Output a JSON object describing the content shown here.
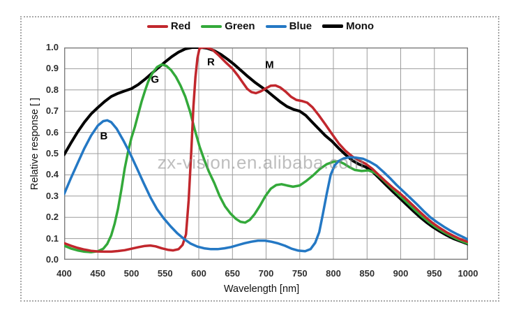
{
  "watermark": {
    "text": "zx-vision.en.alibaba.com"
  },
  "chart_data": {
    "type": "line",
    "title": "",
    "xlabel": "Wavelength [nm]",
    "ylabel": "Relative response [ ]",
    "xlim": [
      400,
      1000
    ],
    "ylim": [
      0,
      1
    ],
    "grid": true,
    "x_ticks": [
      400,
      450,
      500,
      550,
      600,
      650,
      700,
      750,
      800,
      850,
      900,
      950,
      1000
    ],
    "y_ticks": [
      1.0,
      0.9,
      0.8,
      0.7,
      0.6,
      0.5,
      0.4,
      0.3,
      0.2,
      0.1,
      0.0
    ],
    "legend": {
      "position": "top",
      "items": [
        {
          "label": "Red",
          "color": "#c1272d"
        },
        {
          "label": "Green",
          "color": "#33a93a"
        },
        {
          "label": "Blue",
          "color": "#2478c4"
        },
        {
          "label": "Mono",
          "color": "#000000"
        }
      ]
    },
    "annotations": [
      {
        "text": "B",
        "x": 459,
        "y": 0.582
      },
      {
        "text": "G",
        "x": 535,
        "y": 0.849
      },
      {
        "text": "R",
        "x": 618,
        "y": 0.93
      },
      {
        "text": "M",
        "x": 705,
        "y": 0.918
      }
    ],
    "series": [
      {
        "name": "Mono",
        "color": "#000000",
        "width": 4.0,
        "points": [
          [
            400,
            0.495
          ],
          [
            410,
            0.55
          ],
          [
            420,
            0.602
          ],
          [
            430,
            0.648
          ],
          [
            440,
            0.687
          ],
          [
            450,
            0.717
          ],
          [
            460,
            0.745
          ],
          [
            470,
            0.769
          ],
          [
            480,
            0.784
          ],
          [
            490,
            0.795
          ],
          [
            500,
            0.806
          ],
          [
            510,
            0.825
          ],
          [
            520,
            0.85
          ],
          [
            530,
            0.878
          ],
          [
            540,
            0.905
          ],
          [
            550,
            0.932
          ],
          [
            560,
            0.957
          ],
          [
            570,
            0.978
          ],
          [
            580,
            0.993
          ],
          [
            590,
            1.0
          ],
          [
            604,
            1.0
          ],
          [
            613,
            0.996
          ],
          [
            623,
            0.985
          ],
          [
            633,
            0.967
          ],
          [
            643,
            0.944
          ],
          [
            653,
            0.919
          ],
          [
            663,
            0.891
          ],
          [
            673,
            0.863
          ],
          [
            683,
            0.837
          ],
          [
            693,
            0.814
          ],
          [
            701,
            0.796
          ],
          [
            711,
            0.77
          ],
          [
            721,
            0.744
          ],
          [
            731,
            0.722
          ],
          [
            741,
            0.708
          ],
          [
            750,
            0.7
          ],
          [
            759,
            0.68
          ],
          [
            768,
            0.65
          ],
          [
            778,
            0.617
          ],
          [
            788,
            0.585
          ],
          [
            798,
            0.558
          ],
          [
            808,
            0.525
          ],
          [
            818,
            0.495
          ],
          [
            828,
            0.468
          ],
          [
            838,
            0.45
          ],
          [
            848,
            0.437
          ],
          [
            858,
            0.415
          ],
          [
            868,
            0.385
          ],
          [
            878,
            0.353
          ],
          [
            888,
            0.322
          ],
          [
            898,
            0.292
          ],
          [
            908,
            0.262
          ],
          [
            918,
            0.232
          ],
          [
            928,
            0.203
          ],
          [
            938,
            0.177
          ],
          [
            948,
            0.154
          ],
          [
            958,
            0.134
          ],
          [
            968,
            0.116
          ],
          [
            978,
            0.1
          ],
          [
            988,
            0.088
          ],
          [
            1000,
            0.074
          ]
        ]
      },
      {
        "name": "Green",
        "color": "#33a93a",
        "width": 3.5,
        "points": [
          [
            400,
            0.066
          ],
          [
            410,
            0.053
          ],
          [
            420,
            0.044
          ],
          [
            430,
            0.038
          ],
          [
            440,
            0.036
          ],
          [
            450,
            0.04
          ],
          [
            458,
            0.052
          ],
          [
            464,
            0.075
          ],
          [
            470,
            0.115
          ],
          [
            475,
            0.17
          ],
          [
            480,
            0.24
          ],
          [
            485,
            0.33
          ],
          [
            490,
            0.43
          ],
          [
            495,
            0.51
          ],
          [
            500,
            0.575
          ],
          [
            505,
            0.625
          ],
          [
            510,
            0.685
          ],
          [
            515,
            0.745
          ],
          [
            520,
            0.795
          ],
          [
            525,
            0.84
          ],
          [
            531,
            0.878
          ],
          [
            538,
            0.908
          ],
          [
            545,
            0.92
          ],
          [
            552,
            0.913
          ],
          [
            559,
            0.893
          ],
          [
            566,
            0.862
          ],
          [
            573,
            0.82
          ],
          [
            580,
            0.768
          ],
          [
            587,
            0.698
          ],
          [
            594,
            0.613
          ],
          [
            601,
            0.535
          ],
          [
            608,
            0.472
          ],
          [
            615,
            0.415
          ],
          [
            623,
            0.362
          ],
          [
            631,
            0.3
          ],
          [
            639,
            0.252
          ],
          [
            647,
            0.218
          ],
          [
            655,
            0.193
          ],
          [
            662,
            0.179
          ],
          [
            669,
            0.175
          ],
          [
            676,
            0.188
          ],
          [
            683,
            0.215
          ],
          [
            691,
            0.255
          ],
          [
            699,
            0.3
          ],
          [
            707,
            0.335
          ],
          [
            715,
            0.352
          ],
          [
            723,
            0.356
          ],
          [
            731,
            0.35
          ],
          [
            740,
            0.344
          ],
          [
            750,
            0.35
          ],
          [
            760,
            0.372
          ],
          [
            770,
            0.398
          ],
          [
            780,
            0.428
          ],
          [
            790,
            0.45
          ],
          [
            800,
            0.462
          ],
          [
            808,
            0.464
          ],
          [
            816,
            0.452
          ],
          [
            824,
            0.436
          ],
          [
            832,
            0.423
          ],
          [
            842,
            0.418
          ],
          [
            852,
            0.421
          ],
          [
            862,
            0.409
          ],
          [
            872,
            0.382
          ],
          [
            882,
            0.352
          ],
          [
            892,
            0.322
          ],
          [
            902,
            0.292
          ],
          [
            912,
            0.262
          ],
          [
            922,
            0.232
          ],
          [
            932,
            0.203
          ],
          [
            942,
            0.177
          ],
          [
            952,
            0.154
          ],
          [
            962,
            0.134
          ],
          [
            972,
            0.116
          ],
          [
            982,
            0.1
          ],
          [
            992,
            0.086
          ],
          [
            1000,
            0.076
          ]
        ]
      },
      {
        "name": "Red",
        "color": "#c1272d",
        "width": 3.5,
        "points": [
          [
            400,
            0.078
          ],
          [
            410,
            0.066
          ],
          [
            420,
            0.056
          ],
          [
            430,
            0.048
          ],
          [
            440,
            0.042
          ],
          [
            450,
            0.039
          ],
          [
            460,
            0.038
          ],
          [
            470,
            0.038
          ],
          [
            480,
            0.041
          ],
          [
            490,
            0.045
          ],
          [
            500,
            0.052
          ],
          [
            510,
            0.059
          ],
          [
            520,
            0.065
          ],
          [
            528,
            0.067
          ],
          [
            536,
            0.063
          ],
          [
            545,
            0.054
          ],
          [
            554,
            0.047
          ],
          [
            562,
            0.044
          ],
          [
            570,
            0.05
          ],
          [
            576,
            0.07
          ],
          [
            581,
            0.12
          ],
          [
            585,
            0.28
          ],
          [
            589,
            0.52
          ],
          [
            592,
            0.72
          ],
          [
            595,
            0.86
          ],
          [
            598,
            0.95
          ],
          [
            601,
            0.995
          ],
          [
            606,
            1.0
          ],
          [
            612,
            1.0
          ],
          [
            620,
            0.99
          ],
          [
            630,
            0.962
          ],
          [
            640,
            0.93
          ],
          [
            650,
            0.9
          ],
          [
            658,
            0.868
          ],
          [
            666,
            0.832
          ],
          [
            672,
            0.805
          ],
          [
            678,
            0.79
          ],
          [
            685,
            0.785
          ],
          [
            692,
            0.793
          ],
          [
            700,
            0.808
          ],
          [
            707,
            0.82
          ],
          [
            714,
            0.821
          ],
          [
            721,
            0.812
          ],
          [
            729,
            0.792
          ],
          [
            737,
            0.768
          ],
          [
            745,
            0.753
          ],
          [
            753,
            0.748
          ],
          [
            761,
            0.74
          ],
          [
            769,
            0.718
          ],
          [
            778,
            0.682
          ],
          [
            788,
            0.638
          ],
          [
            798,
            0.592
          ],
          [
            808,
            0.548
          ],
          [
            818,
            0.513
          ],
          [
            828,
            0.487
          ],
          [
            838,
            0.468
          ],
          [
            848,
            0.452
          ],
          [
            858,
            0.428
          ],
          [
            868,
            0.398
          ],
          [
            878,
            0.368
          ],
          [
            888,
            0.34
          ],
          [
            898,
            0.315
          ],
          [
            908,
            0.287
          ],
          [
            918,
            0.257
          ],
          [
            928,
            0.227
          ],
          [
            938,
            0.198
          ],
          [
            948,
            0.172
          ],
          [
            958,
            0.15
          ],
          [
            968,
            0.13
          ],
          [
            978,
            0.113
          ],
          [
            988,
            0.098
          ],
          [
            1000,
            0.084
          ]
        ]
      },
      {
        "name": "Blue",
        "color": "#2478c4",
        "width": 3.5,
        "points": [
          [
            400,
            0.31
          ],
          [
            410,
            0.385
          ],
          [
            420,
            0.455
          ],
          [
            430,
            0.525
          ],
          [
            440,
            0.585
          ],
          [
            450,
            0.632
          ],
          [
            458,
            0.653
          ],
          [
            464,
            0.657
          ],
          [
            470,
            0.648
          ],
          [
            478,
            0.617
          ],
          [
            488,
            0.562
          ],
          [
            498,
            0.5
          ],
          [
            508,
            0.432
          ],
          [
            518,
            0.362
          ],
          [
            528,
            0.295
          ],
          [
            538,
            0.238
          ],
          [
            548,
            0.195
          ],
          [
            558,
            0.158
          ],
          [
            568,
            0.125
          ],
          [
            578,
            0.098
          ],
          [
            588,
            0.076
          ],
          [
            598,
            0.062
          ],
          [
            608,
            0.054
          ],
          [
            618,
            0.05
          ],
          [
            628,
            0.05
          ],
          [
            638,
            0.054
          ],
          [
            648,
            0.06
          ],
          [
            658,
            0.069
          ],
          [
            668,
            0.078
          ],
          [
            678,
            0.085
          ],
          [
            688,
            0.09
          ],
          [
            698,
            0.09
          ],
          [
            708,
            0.085
          ],
          [
            718,
            0.077
          ],
          [
            728,
            0.066
          ],
          [
            738,
            0.052
          ],
          [
            748,
            0.043
          ],
          [
            758,
            0.04
          ],
          [
            766,
            0.05
          ],
          [
            773,
            0.08
          ],
          [
            779,
            0.13
          ],
          [
            784,
            0.21
          ],
          [
            790,
            0.31
          ],
          [
            796,
            0.4
          ],
          [
            802,
            0.445
          ],
          [
            808,
            0.465
          ],
          [
            815,
            0.477
          ],
          [
            824,
            0.483
          ],
          [
            834,
            0.481
          ],
          [
            844,
            0.476
          ],
          [
            854,
            0.462
          ],
          [
            864,
            0.443
          ],
          [
            874,
            0.415
          ],
          [
            884,
            0.385
          ],
          [
            894,
            0.352
          ],
          [
            904,
            0.322
          ],
          [
            914,
            0.292
          ],
          [
            924,
            0.262
          ],
          [
            934,
            0.23
          ],
          [
            944,
            0.2
          ],
          [
            954,
            0.177
          ],
          [
            964,
            0.156
          ],
          [
            974,
            0.137
          ],
          [
            984,
            0.12
          ],
          [
            994,
            0.105
          ],
          [
            1000,
            0.095
          ]
        ]
      }
    ]
  }
}
